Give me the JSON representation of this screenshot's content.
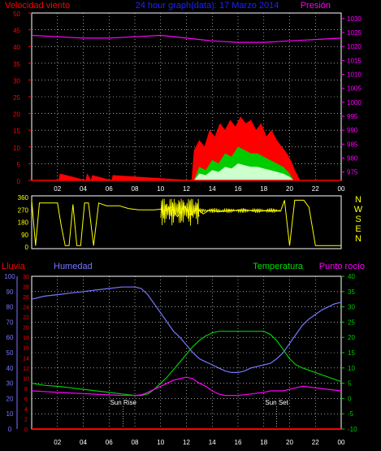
{
  "chart_data": [
    {
      "type": "area",
      "title": "24 hour graph(data): 17 Marzo 2014",
      "left_label": "Velocidad viento",
      "right_label": "Presión",
      "x_ticks": [
        "02",
        "04",
        "06",
        "08",
        "10",
        "12",
        "14",
        "16",
        "18",
        "20",
        "22",
        "00"
      ],
      "x_range_hours": [
        0,
        24
      ],
      "y_left_ticks": [
        "0",
        "5",
        "10",
        "15",
        "20",
        "25",
        "30",
        "35",
        "40",
        "45",
        "50"
      ],
      "ylim_left": [
        0,
        50
      ],
      "y_right_ticks": [
        "975",
        "980",
        "985",
        "990",
        "995",
        "1000",
        "1005",
        "1010",
        "1015",
        "1020",
        "1025",
        "1030"
      ],
      "ylim_right": [
        972,
        1032
      ],
      "grid": true,
      "series": [
        {
          "name": "gust",
          "color": "#ff0000",
          "x": [
            0,
            2.1,
            2.2,
            4.2,
            4.3,
            4.6,
            4.7,
            6.2,
            6.3,
            12.4,
            12.6,
            13.0,
            13.4,
            13.8,
            14.2,
            14.6,
            15.0,
            15.4,
            15.8,
            16.2,
            16.6,
            17.0,
            17.4,
            17.8,
            18.2,
            18.6,
            19.0,
            19.4,
            19.8,
            20.2,
            20.4,
            20.8,
            24
          ],
          "y": [
            0,
            0,
            2,
            0,
            2,
            0,
            1.5,
            0,
            1.5,
            0,
            9,
            12,
            10,
            15,
            13,
            17,
            15,
            18,
            16,
            19,
            17,
            18,
            15,
            17,
            13,
            15,
            12,
            10,
            8,
            5,
            3,
            0,
            0
          ]
        },
        {
          "name": "average",
          "color": "#00cc00",
          "x": [
            0,
            12.6,
            13.0,
            13.5,
            14.0,
            14.5,
            15.0,
            15.5,
            16.0,
            16.5,
            17.0,
            17.5,
            18.0,
            18.5,
            19.0,
            19.5,
            20.0,
            20.3,
            24
          ],
          "y": [
            0,
            0,
            4,
            3,
            6,
            5,
            8,
            7,
            10,
            9,
            8,
            8,
            7,
            6,
            5,
            4,
            2,
            0,
            0
          ]
        },
        {
          "name": "wind",
          "color": "#ccffcc",
          "x": [
            0,
            12.6,
            13.0,
            13.5,
            14.0,
            14.5,
            15.0,
            15.5,
            16.0,
            16.5,
            17.0,
            17.5,
            18.0,
            18.5,
            19.0,
            19.5,
            20.0,
            20.3,
            24
          ],
          "y": [
            0,
            0,
            2,
            1.5,
            3,
            2.5,
            4,
            3.5,
            5,
            4.5,
            4,
            4,
            3.5,
            3,
            2.5,
            2,
            1,
            0,
            0
          ]
        },
        {
          "name": "pressure",
          "color": "#ff00ff",
          "axis": "right",
          "x": [
            0,
            2,
            4,
            6,
            8,
            10,
            12,
            14,
            16,
            18,
            20,
            22,
            24
          ],
          "y": [
            1024,
            1023.5,
            1023,
            1023,
            1023.5,
            1024,
            1023,
            1022,
            1021.5,
            1021.5,
            1022,
            1022.5,
            1023
          ]
        }
      ]
    },
    {
      "type": "line",
      "title": "",
      "right_labels": [
        "N",
        "W",
        "S",
        "E",
        "N"
      ],
      "y_ticks": [
        "0",
        "90",
        "180",
        "270",
        "360"
      ],
      "ylim": [
        0,
        360
      ],
      "x_range_hours": [
        0,
        24
      ],
      "series": [
        {
          "name": "direction",
          "color": "#ffff00",
          "x": [
            0,
            0.3,
            0.6,
            1.0,
            1.5,
            2.0,
            2.3,
            2.6,
            2.9,
            3.2,
            3.5,
            3.8,
            4.1,
            4.4,
            4.8,
            5.2,
            5.8,
            6.2,
            6.8,
            7.5,
            8.3,
            9.0,
            9.5,
            10.0,
            10.3,
            10.8,
            11.3,
            11.8,
            12.3,
            12.8,
            13.3,
            13.8,
            14.5,
            15.5,
            16.5,
            17.5,
            18.5,
            19.3,
            19.6,
            20.0,
            20.4,
            20.8,
            21.1,
            21.5,
            22.0,
            22.5,
            23.0,
            23.5,
            24
          ],
          "y": [
            340,
            10,
            320,
            320,
            320,
            320,
            150,
            10,
            10,
            310,
            10,
            10,
            320,
            320,
            10,
            320,
            300,
            300,
            300,
            280,
            270,
            270,
            270,
            275,
            260,
            290,
            220,
            300,
            230,
            280,
            240,
            270,
            255,
            265,
            270,
            260,
            265,
            260,
            340,
            10,
            340,
            340,
            340,
            290,
            10,
            10,
            10,
            10,
            10
          ]
        }
      ]
    },
    {
      "type": "line",
      "title": "",
      "legend": [
        "Lluvia",
        "Humedad",
        "Temperatura",
        "Punto rocío"
      ],
      "annotations": [
        {
          "text": "Sun Rise",
          "x_hour": 7.1
        },
        {
          "text": "Sun Set",
          "x_hour": 19.0
        }
      ],
      "x_ticks": [
        "02",
        "04",
        "06",
        "08",
        "10",
        "12",
        "14",
        "16",
        "18",
        "20",
        "22",
        "00"
      ],
      "x_range_hours": [
        0,
        24
      ],
      "y_humidity_ticks": [
        "0",
        "10",
        "20",
        "30",
        "40",
        "50",
        "60",
        "70",
        "80",
        "90",
        "100"
      ],
      "ylim_humidity": [
        0,
        100
      ],
      "y_rain_ticks": [
        "0",
        "2",
        "4",
        "6",
        "8",
        "10",
        "12",
        "14",
        "16",
        "18",
        "20",
        "22",
        "24",
        "26",
        "28",
        "30"
      ],
      "ylim_rain": [
        0,
        30
      ],
      "y_temp_ticks": [
        "-10",
        "-5",
        "0",
        "5",
        "10",
        "15",
        "20",
        "25",
        "30",
        "35",
        "40"
      ],
      "ylim_temp": [
        -10,
        40
      ],
      "grid": true,
      "series": [
        {
          "name": "Humedad",
          "color": "#7777ff",
          "x": [
            0,
            1,
            2,
            3,
            4,
            5,
            6,
            7,
            8,
            8.5,
            9,
            9.5,
            10,
            10.5,
            11,
            11.5,
            12,
            12.5,
            13,
            13.5,
            14,
            14.5,
            15,
            15.5,
            16,
            16.5,
            17,
            17.5,
            18,
            18.5,
            19,
            19.5,
            20,
            20.5,
            21,
            21.5,
            22,
            22.5,
            23,
            23.5,
            24
          ],
          "y": [
            85,
            87,
            88,
            89,
            90,
            91,
            92,
            93,
            93,
            92,
            88,
            82,
            76,
            70,
            64,
            60,
            55,
            50,
            46,
            44,
            42,
            40,
            38,
            37,
            37,
            38,
            40,
            41,
            42,
            43,
            46,
            50,
            56,
            62,
            68,
            72,
            75,
            78,
            80,
            82,
            83
          ]
        },
        {
          "name": "Temperatura",
          "color": "#00cc00",
          "x": [
            0,
            1,
            2,
            3,
            4,
            5,
            6,
            7,
            8,
            8.5,
            9,
            9.5,
            10,
            10.5,
            11,
            11.5,
            12,
            12.5,
            13,
            13.5,
            14,
            14.5,
            15,
            16,
            17,
            18,
            18.5,
            19,
            19.5,
            20,
            20.5,
            21,
            22,
            23,
            24
          ],
          "y": [
            5,
            4.3,
            4,
            3.5,
            3,
            2.5,
            2,
            1.5,
            1,
            1,
            1.5,
            3,
            5,
            7,
            9.5,
            12,
            14.5,
            17,
            19,
            20.5,
            21.5,
            22,
            22,
            22,
            22,
            22,
            21,
            19,
            16,
            13,
            11,
            10,
            8.5,
            7,
            5.5
          ]
        },
        {
          "name": "Punto rocío",
          "color": "#ff00ff",
          "x": [
            0,
            1,
            2,
            3,
            4,
            5,
            6,
            7,
            8,
            8.5,
            9,
            9.5,
            10,
            10.5,
            11,
            11.5,
            12,
            12.5,
            13,
            13.5,
            14,
            14.5,
            15,
            16,
            17,
            18,
            18.5,
            19,
            19.5,
            20,
            20.5,
            21,
            22,
            23,
            24
          ],
          "y": [
            2.5,
            2.3,
            2,
            1.8,
            1.6,
            1.4,
            1.2,
            1,
            1,
            1.2,
            2,
            3,
            4,
            5,
            6,
            6.5,
            7,
            6.5,
            5,
            4,
            2.5,
            1.5,
            1,
            1,
            1.5,
            2,
            2.5,
            2.5,
            2.5,
            3,
            3.5,
            4,
            3.5,
            3,
            2.5
          ]
        },
        {
          "name": "Lluvia",
          "color": "#ff0000",
          "x": [
            0,
            24
          ],
          "y": [
            0,
            0
          ]
        }
      ]
    }
  ]
}
